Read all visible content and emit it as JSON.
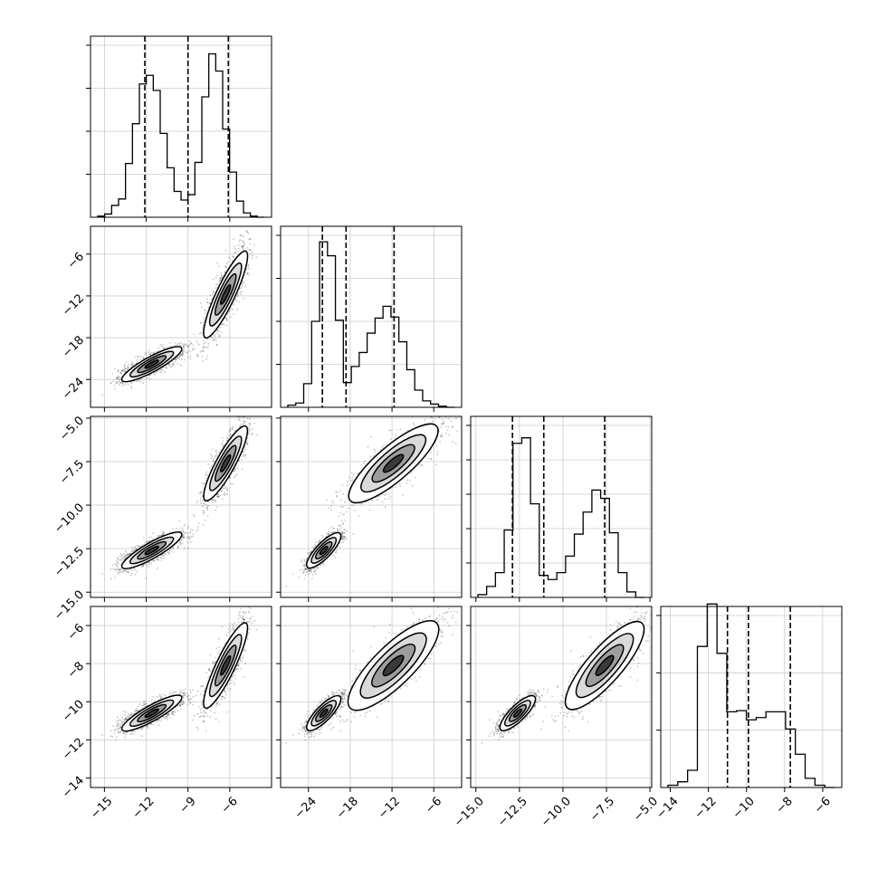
{
  "chart_data": {
    "type": "corner",
    "grid": true,
    "axes": [
      {
        "range": [
          -16.0,
          -3.0
        ],
        "ticks": [
          -15,
          -12,
          -9,
          -6
        ],
        "tick_labels": [
          "−15",
          "−12",
          "−9",
          "−6"
        ],
        "quantiles": [
          -12.1,
          -9.0,
          -6.1
        ],
        "hist_max": 16,
        "hist_ticks": [
          4,
          8,
          12,
          16
        ],
        "hist_bins": [
          0.1,
          0.3,
          1.1,
          1.7,
          5.0,
          8.7,
          12.4,
          13.2,
          11.8,
          7.8,
          4.6,
          2.4,
          1.6,
          2.1,
          5.1,
          11.2,
          15.2,
          13.6,
          8.2,
          4.2,
          1.5,
          0.4,
          0.1,
          0.0
        ]
      },
      {
        "range": [
          -28.0,
          -2.0
        ],
        "ticks": [
          -24,
          -18,
          -12,
          -6
        ],
        "tick_labels": [
          "−24",
          "−18",
          "−12",
          "−6"
        ],
        "quantiles": [
          -22.0,
          -18.6,
          -11.7
        ],
        "hist_max": 16,
        "hist_ticks": [
          4,
          8,
          12,
          16
        ],
        "hist_bins": [
          0.2,
          0.4,
          2.2,
          8.0,
          15.4,
          14.1,
          8.1,
          2.3,
          3.8,
          5.1,
          6.9,
          8.3,
          9.4,
          8.4,
          6.1,
          3.5,
          1.6,
          0.6,
          0.3,
          0.1,
          0.0
        ]
      },
      {
        "range": [
          -15.3,
          -4.9
        ],
        "ticks": [
          -15.0,
          -12.5,
          -10.0,
          -7.5,
          -5.0
        ],
        "tick_labels": [
          "−15.0",
          "−12.5",
          "−10.0",
          "−7.5",
          "−5.0"
        ],
        "quantiles": [
          -12.9,
          -11.1,
          -7.6
        ],
        "hist_max": 12.5,
        "hist_ticks": [
          2.5,
          5.0,
          7.5,
          10.0,
          12.5
        ],
        "hist_bins": [
          0.2,
          0.8,
          1.8,
          4.9,
          11.2,
          11.6,
          6.8,
          1.6,
          1.3,
          1.8,
          3.0,
          4.6,
          6.2,
          7.8,
          7.2,
          4.7,
          1.8,
          0.4,
          0.0
        ]
      },
      {
        "range": [
          -14.5,
          -5.0
        ],
        "ticks": [
          -14,
          -12,
          -10,
          -8,
          -6
        ],
        "tick_labels": [
          "−14",
          "−12",
          "−10",
          "−8",
          "−6"
        ],
        "quantiles": [
          -11.0,
          -9.9,
          -7.7
        ],
        "hist_max": 15,
        "hist_ticks": [
          5,
          10,
          15
        ],
        "hist_bins": [
          0.2,
          0.5,
          1.5,
          12.3,
          16.0,
          11.7,
          6.6,
          6.7,
          5.9,
          6.1,
          6.6,
          6.6,
          5.1,
          2.9,
          0.8,
          0.2,
          0.0
        ]
      }
    ],
    "modes": [
      {
        "mean": [
          -11.6,
          -21.8,
          -12.6,
          -10.6
        ],
        "sd": [
          1.1,
          1.2,
          0.5,
          0.45
        ],
        "weight": 0.55
      },
      {
        "mean": [
          -6.3,
          -11.8,
          -7.6,
          -8.1
        ],
        "sd": [
          0.75,
          3.2,
          1.1,
          1.15
        ],
        "weight": 0.45
      }
    ]
  }
}
